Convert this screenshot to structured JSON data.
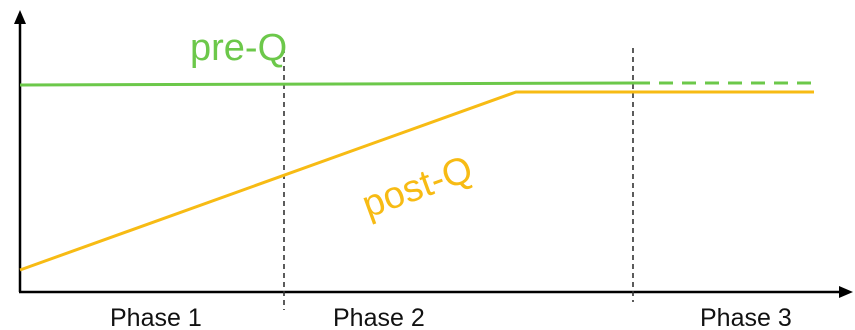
{
  "colors": {
    "pre_q": "#6cc84a",
    "post_q": "#f7bb14",
    "axis": "#000000",
    "divider": "#333333"
  },
  "curves": {
    "pre_q_label": "pre-Q",
    "post_q_label": "post-Q"
  },
  "phases": [
    "Phase 1",
    "Phase 2",
    "Phase 3"
  ]
}
